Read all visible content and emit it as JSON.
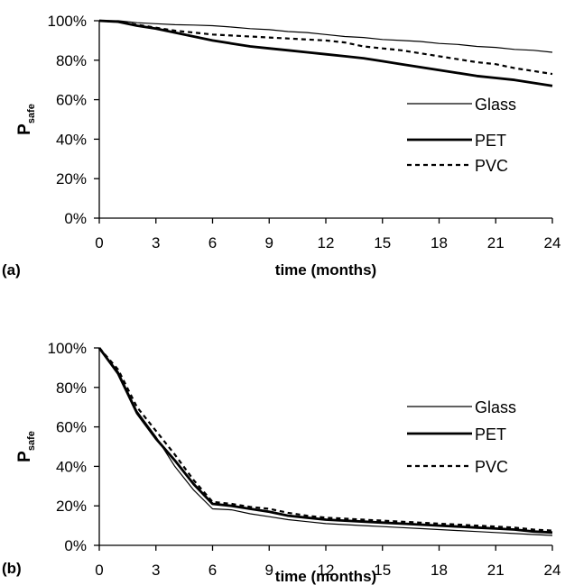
{
  "chart_data": [
    {
      "type": "line",
      "panel_label": "(a)",
      "xlabel": "time (months)",
      "ylabel": {
        "main": "P",
        "sub": "safe"
      },
      "xlim": [
        0,
        24
      ],
      "ylim": [
        0,
        100
      ],
      "x_ticks": [
        "0",
        "3",
        "6",
        "9",
        "12",
        "15",
        "18",
        "21",
        "24"
      ],
      "y_ticks": [
        "0%",
        "20%",
        "40%",
        "60%",
        "80%",
        "100%"
      ],
      "grid": false,
      "legend_position": "right",
      "x": [
        0,
        1,
        2,
        3,
        4,
        5,
        6,
        7,
        8,
        9,
        10,
        11,
        12,
        13,
        14,
        15,
        16,
        17,
        18,
        19,
        20,
        21,
        22,
        23,
        24
      ],
      "series": [
        {
          "name": "Glass",
          "style": "thin-solid",
          "values": [
            100,
            100,
            99,
            98.5,
            98,
            97.8,
            97.5,
            96.8,
            96,
            95.5,
            94.5,
            94,
            93,
            92,
            91.5,
            90.5,
            90,
            89.5,
            88.5,
            88,
            87,
            86.5,
            85.5,
            85,
            84
          ]
        },
        {
          "name": "PET",
          "style": "thick-solid",
          "values": [
            100,
            99.5,
            97.5,
            96,
            94,
            92,
            90,
            88.5,
            87,
            86,
            85,
            84,
            83,
            82,
            81,
            79.5,
            78,
            76.5,
            75,
            73.5,
            72,
            71,
            70,
            68.5,
            67
          ]
        },
        {
          "name": "PVC",
          "style": "dashed",
          "values": [
            100,
            99.5,
            98,
            96.5,
            95,
            94,
            93,
            92.5,
            92,
            91.5,
            91,
            90.5,
            90,
            89,
            87,
            86,
            85,
            83.5,
            82,
            80.5,
            79,
            78,
            76,
            74.5,
            73
          ]
        }
      ]
    },
    {
      "type": "line",
      "panel_label": "(b)",
      "xlabel": "time (months)",
      "ylabel": {
        "main": "P",
        "sub": "safe"
      },
      "xlim": [
        0,
        24
      ],
      "ylim": [
        0,
        100
      ],
      "x_ticks": [
        "0",
        "3",
        "6",
        "9",
        "12",
        "15",
        "18",
        "21",
        "24"
      ],
      "y_ticks": [
        "0%",
        "20%",
        "40%",
        "60%",
        "80%",
        "100%"
      ],
      "grid": false,
      "legend_position": "right",
      "x": [
        0,
        1,
        2,
        3,
        4,
        5,
        6,
        7,
        8,
        9,
        10,
        11,
        12,
        13,
        14,
        15,
        16,
        17,
        18,
        19,
        20,
        21,
        22,
        23,
        24
      ],
      "series": [
        {
          "name": "Glass",
          "style": "thin-solid",
          "values": [
            100,
            88,
            68,
            55,
            40,
            28,
            18.5,
            18,
            16,
            14.5,
            13,
            12,
            11,
            10.5,
            10,
            9.5,
            9,
            8.5,
            8,
            7.5,
            7,
            6.5,
            6,
            5.5,
            5
          ]
        },
        {
          "name": "PET",
          "style": "thick-solid",
          "values": [
            100,
            87,
            67,
            54,
            43,
            31,
            21,
            20,
            18.5,
            17,
            15,
            14,
            13,
            12.5,
            12,
            11.5,
            11,
            10.5,
            10,
            9.5,
            9,
            8.5,
            8,
            7,
            6.5
          ]
        },
        {
          "name": "PVC",
          "style": "dashed",
          "values": [
            100,
            89,
            70,
            58,
            46,
            33,
            22,
            21,
            19.5,
            18.5,
            16.5,
            15,
            14,
            13.5,
            13,
            12.5,
            12,
            11.5,
            11,
            10.5,
            10,
            9.5,
            9,
            8,
            7.5
          ]
        }
      ]
    }
  ]
}
